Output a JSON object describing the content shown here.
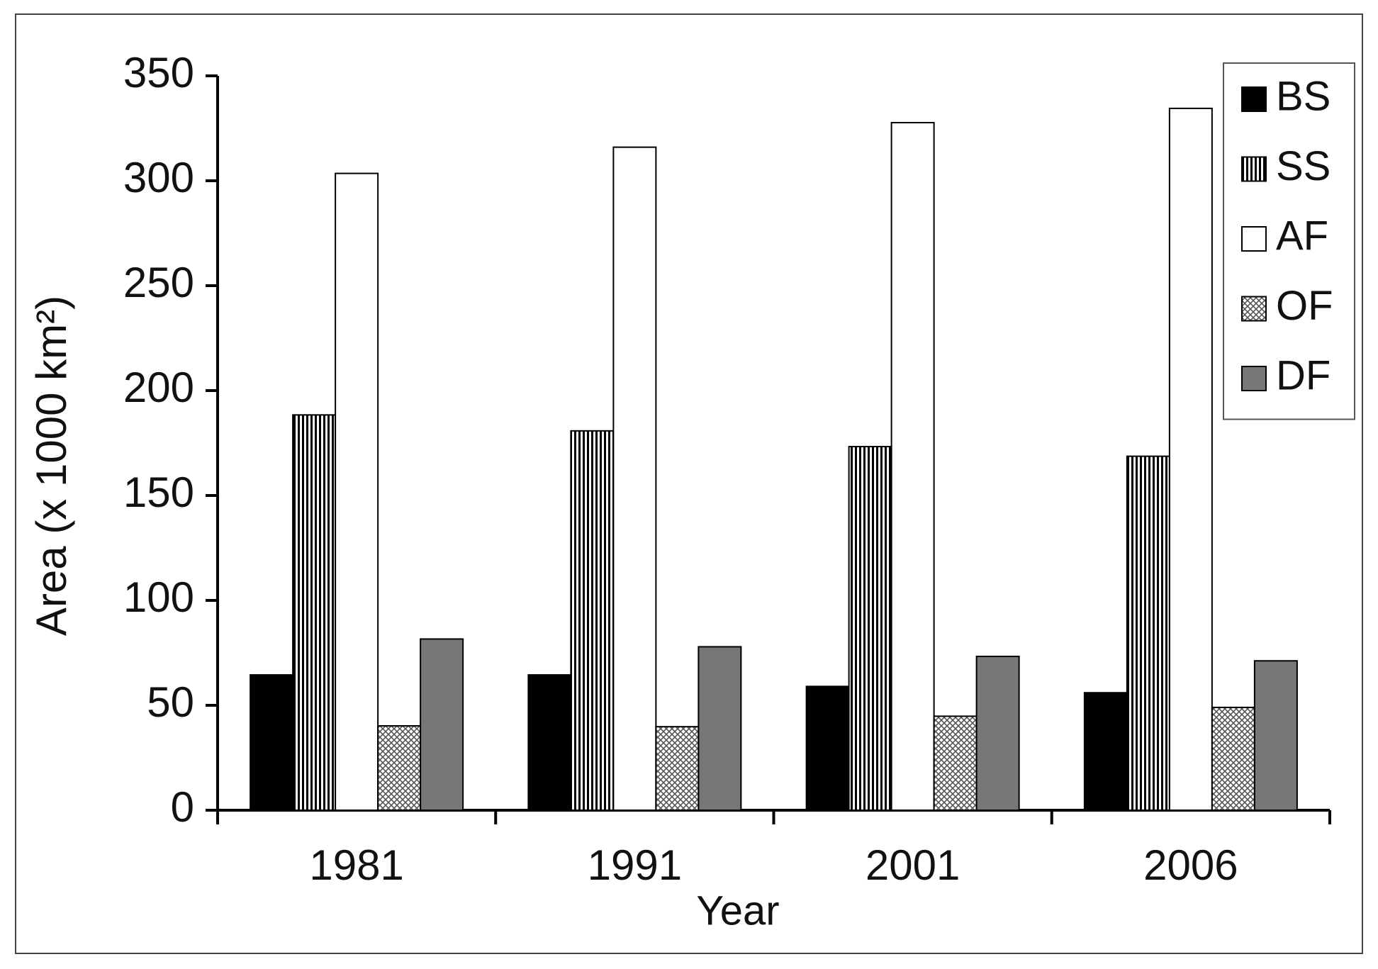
{
  "chart_data": {
    "type": "bar",
    "x_label": "Year",
    "y_label": "Area (x 1000 km²)",
    "categories": [
      "1981",
      "1991",
      "2001",
      "2006"
    ],
    "series": [
      {
        "name": "BS",
        "color": "#000000",
        "hatch": "none",
        "values": [
          64.5,
          64.5,
          59,
          56
        ]
      },
      {
        "name": "SS",
        "color": "#000000",
        "hatch": "vertical",
        "values": [
          188.4,
          180.8,
          173.3,
          168.7
        ]
      },
      {
        "name": "AF",
        "color": "#ffffff",
        "hatch": "none",
        "values": [
          303.5,
          316,
          327.7,
          334.5
        ]
      },
      {
        "name": "OF",
        "color": "#888888",
        "hatch": "cross",
        "values": [
          40.2,
          39.8,
          44.8,
          49
        ]
      },
      {
        "name": "DF",
        "color": "#777777",
        "hatch": "none",
        "values": [
          81.6,
          77.9,
          73.3,
          71.2
        ]
      }
    ],
    "ylim": [
      0,
      350
    ],
    "yticks": [
      0,
      50,
      100,
      150,
      200,
      250,
      300,
      350
    ],
    "grid": false,
    "legend": "upper right"
  }
}
